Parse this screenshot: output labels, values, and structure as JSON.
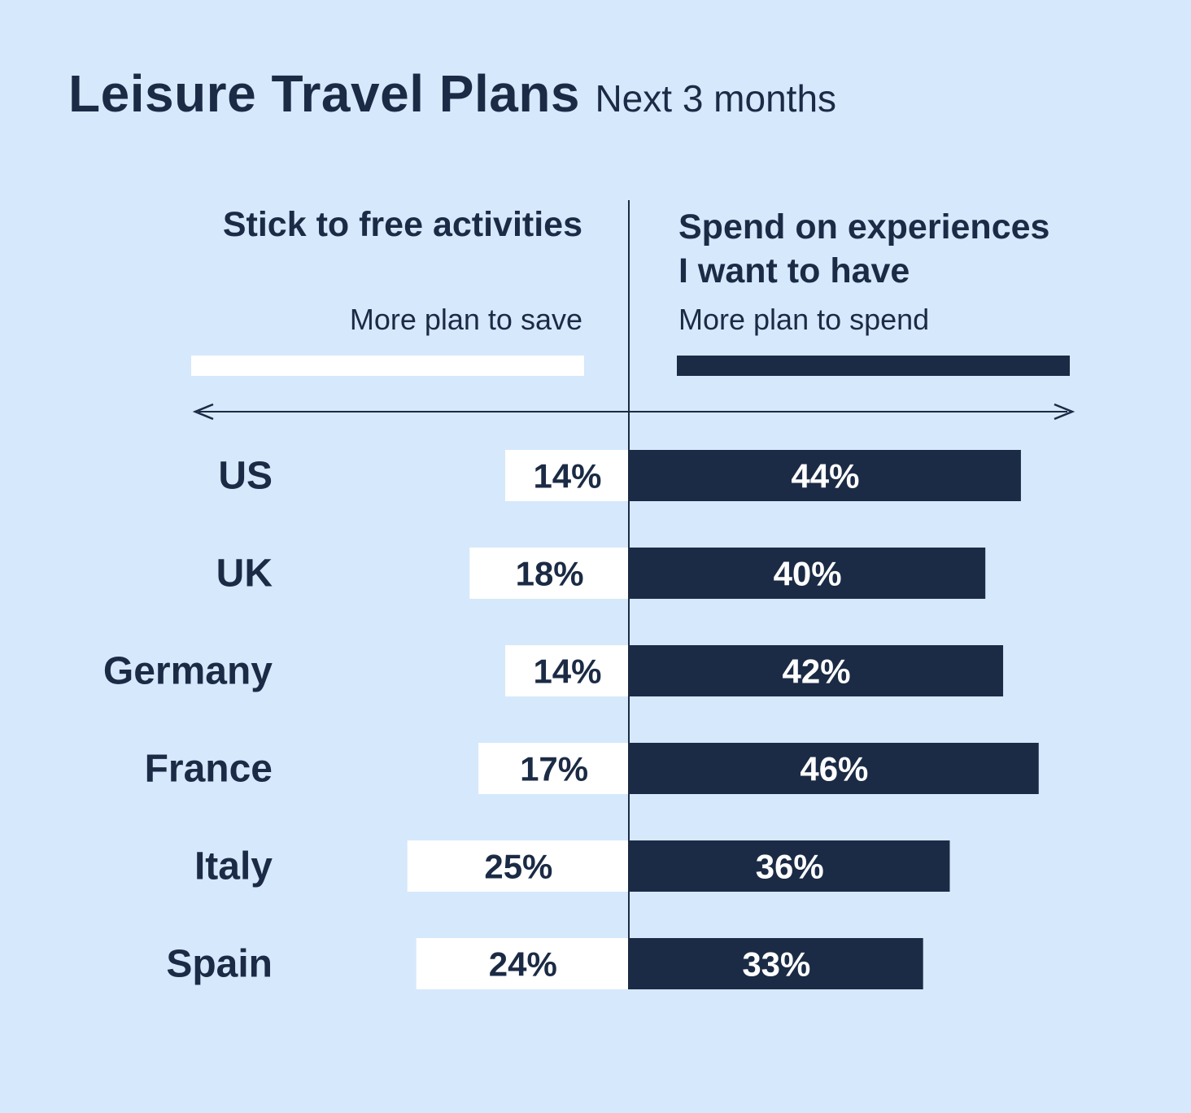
{
  "header": {
    "title": "Leisure Travel Plans",
    "subtitle": "Next 3 months"
  },
  "legend": {
    "left_heading": "Stick to free activities",
    "left_subheading": "More plan to save",
    "right_heading_line1": "Spend on experiences",
    "right_heading_line2": "I want to have",
    "right_subheading": "More plan to spend"
  },
  "colors": {
    "background": "#d6e8fb",
    "save_bar": "#ffffff",
    "spend_bar": "#1b2b45",
    "text": "#1b2b45"
  },
  "chart_data": {
    "type": "bar",
    "orientation": "horizontal-diverging",
    "title": "Leisure Travel Plans",
    "subtitle": "Next 3 months",
    "categories": [
      "US",
      "UK",
      "Germany",
      "France",
      "Italy",
      "Spain"
    ],
    "series": [
      {
        "name": "Stick to free activities",
        "values": [
          14,
          18,
          14,
          17,
          25,
          24
        ],
        "direction": "left"
      },
      {
        "name": "Spend on experiences I want to have",
        "values": [
          44,
          40,
          42,
          46,
          36,
          33
        ],
        "direction": "right"
      }
    ],
    "value_suffix": "%",
    "grid": false
  }
}
